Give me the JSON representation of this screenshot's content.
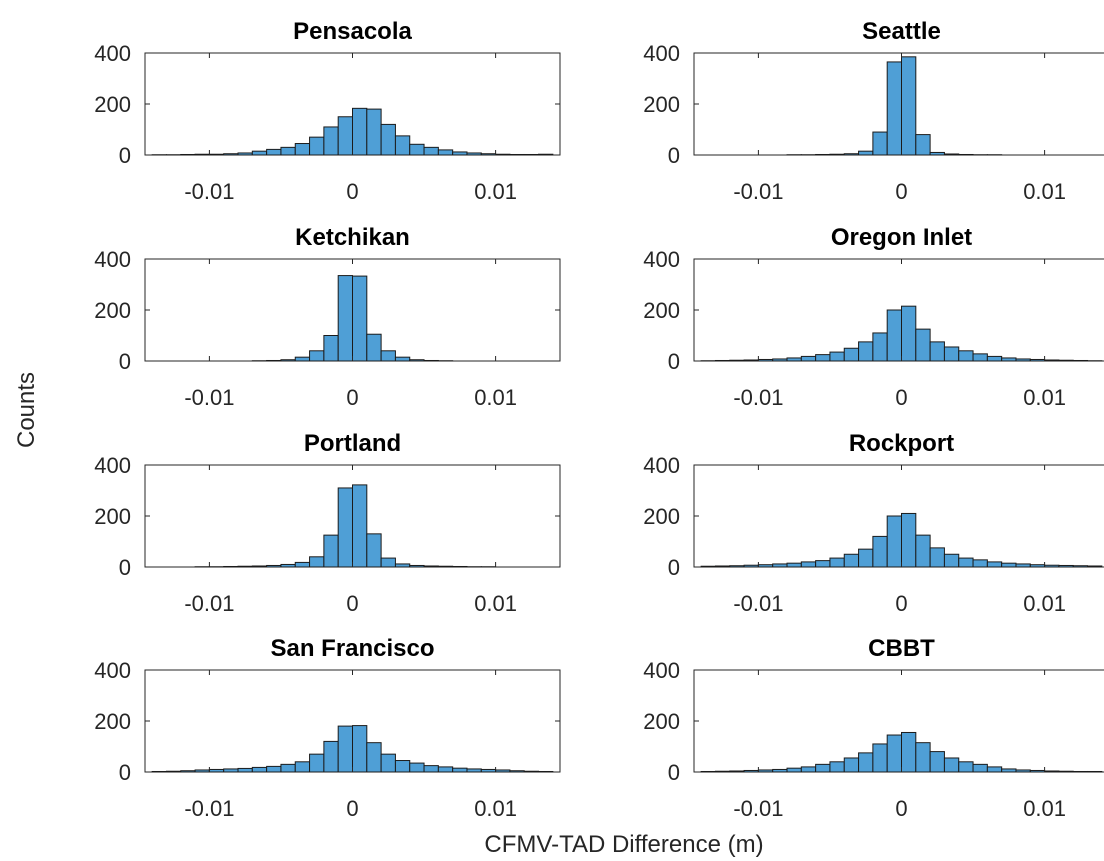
{
  "figure": {
    "ylabel": "Counts",
    "xlabel": "CFMV-TAD Difference (m)"
  },
  "colors": {
    "bar_fill": "#4f9fd6",
    "bar_edge": "#1b1b1b",
    "axis": "#262626"
  },
  "chart_data": [
    {
      "type": "bar",
      "title": "Pensacola",
      "xlim": [
        -0.0145,
        0.0145
      ],
      "ylim": [
        0,
        400
      ],
      "xticks": [
        -0.01,
        0,
        0.01
      ],
      "xtick_labels": [
        "-0.01",
        "0",
        "0.01"
      ],
      "yticks": [
        0,
        200,
        400
      ],
      "ytick_labels": [
        "0",
        "200",
        "400"
      ],
      "bin_width": 0.001,
      "bin_centers": [
        -0.0135,
        -0.0125,
        -0.0115,
        -0.0105,
        -0.0095,
        -0.0085,
        -0.0075,
        -0.0065,
        -0.0055,
        -0.0045,
        -0.0035,
        -0.0025,
        -0.0015,
        -0.0005,
        0.0005,
        0.0015,
        0.0025,
        0.0035,
        0.0045,
        0.0055,
        0.0065,
        0.0075,
        0.0085,
        0.0095,
        0.0105,
        0.0115,
        0.0125,
        0.0135
      ],
      "values": [
        1,
        1,
        2,
        3,
        3,
        5,
        8,
        15,
        22,
        30,
        45,
        70,
        110,
        150,
        183,
        180,
        120,
        75,
        42,
        30,
        20,
        12,
        8,
        5,
        3,
        2,
        2,
        3
      ]
    },
    {
      "type": "bar",
      "title": "Seattle",
      "xlim": [
        -0.0145,
        0.0145
      ],
      "ylim": [
        0,
        400
      ],
      "xticks": [
        -0.01,
        0,
        0.01
      ],
      "xtick_labels": [
        "-0.01",
        "0",
        "0.01"
      ],
      "yticks": [
        0,
        200,
        400
      ],
      "ytick_labels": [
        "0",
        "200",
        "400"
      ],
      "bin_width": 0.001,
      "bin_centers": [
        -0.0135,
        -0.0125,
        -0.0115,
        -0.0105,
        -0.0095,
        -0.0085,
        -0.0075,
        -0.0065,
        -0.0055,
        -0.0045,
        -0.0035,
        -0.0025,
        -0.0015,
        -0.0005,
        0.0005,
        0.0015,
        0.0025,
        0.0035,
        0.0045,
        0.0055,
        0.0065,
        0.0075,
        0.0085,
        0.0095,
        0.0105,
        0.0115,
        0.0125,
        0.0135
      ],
      "values": [
        0,
        0,
        0,
        0,
        0,
        0,
        1,
        1,
        2,
        3,
        5,
        15,
        90,
        365,
        385,
        80,
        10,
        4,
        2,
        1,
        1,
        0,
        0,
        0,
        0,
        0,
        0,
        0
      ]
    },
    {
      "type": "bar",
      "title": "Ketchikan",
      "xlim": [
        -0.0145,
        0.0145
      ],
      "ylim": [
        0,
        400
      ],
      "xticks": [
        -0.01,
        0,
        0.01
      ],
      "xtick_labels": [
        "-0.01",
        "0",
        "0.01"
      ],
      "yticks": [
        0,
        200,
        400
      ],
      "ytick_labels": [
        "0",
        "200",
        "400"
      ],
      "bin_width": 0.001,
      "bin_centers": [
        -0.0135,
        -0.0125,
        -0.0115,
        -0.0105,
        -0.0095,
        -0.0085,
        -0.0075,
        -0.0065,
        -0.0055,
        -0.0045,
        -0.0035,
        -0.0025,
        -0.0015,
        -0.0005,
        0.0005,
        0.0015,
        0.0025,
        0.0035,
        0.0045,
        0.0055,
        0.0065,
        0.0075,
        0.0085,
        0.0095,
        0.0105,
        0.0115,
        0.0125,
        0.0135
      ],
      "values": [
        0,
        0,
        0,
        0,
        0,
        0,
        0,
        1,
        2,
        5,
        15,
        40,
        100,
        335,
        333,
        105,
        40,
        15,
        5,
        2,
        1,
        0,
        0,
        0,
        0,
        0,
        0,
        0
      ]
    },
    {
      "type": "bar",
      "title": "Oregon Inlet",
      "xlim": [
        -0.0145,
        0.0145
      ],
      "ylim": [
        0,
        400
      ],
      "xticks": [
        -0.01,
        0,
        0.01
      ],
      "xtick_labels": [
        "-0.01",
        "0",
        "0.01"
      ],
      "yticks": [
        0,
        200,
        400
      ],
      "ytick_labels": [
        "0",
        "200",
        "400"
      ],
      "bin_width": 0.001,
      "bin_centers": [
        -0.0135,
        -0.0125,
        -0.0115,
        -0.0105,
        -0.0095,
        -0.0085,
        -0.0075,
        -0.0065,
        -0.0055,
        -0.0045,
        -0.0035,
        -0.0025,
        -0.0015,
        -0.0005,
        0.0005,
        0.0015,
        0.0025,
        0.0035,
        0.0045,
        0.0055,
        0.0065,
        0.0075,
        0.0085,
        0.0095,
        0.0105,
        0.0115,
        0.0125,
        0.0135
      ],
      "values": [
        1,
        2,
        3,
        4,
        6,
        8,
        12,
        18,
        25,
        35,
        50,
        75,
        110,
        200,
        215,
        125,
        75,
        55,
        40,
        28,
        18,
        12,
        8,
        6,
        4,
        3,
        2,
        1
      ]
    },
    {
      "type": "bar",
      "title": "Portland",
      "xlim": [
        -0.0145,
        0.0145
      ],
      "ylim": [
        0,
        400
      ],
      "xticks": [
        -0.01,
        0,
        0.01
      ],
      "xtick_labels": [
        "-0.01",
        "0",
        "0.01"
      ],
      "yticks": [
        0,
        200,
        400
      ],
      "ytick_labels": [
        "0",
        "200",
        "400"
      ],
      "bin_width": 0.001,
      "bin_centers": [
        -0.0135,
        -0.0125,
        -0.0115,
        -0.0105,
        -0.0095,
        -0.0085,
        -0.0075,
        -0.0065,
        -0.0055,
        -0.0045,
        -0.0035,
        -0.0025,
        -0.0015,
        -0.0005,
        0.0005,
        0.0015,
        0.0025,
        0.0035,
        0.0045,
        0.0055,
        0.0065,
        0.0075,
        0.0085,
        0.0095,
        0.0105,
        0.0115,
        0.0125,
        0.0135
      ],
      "values": [
        0,
        0,
        0,
        1,
        1,
        2,
        3,
        4,
        6,
        10,
        18,
        40,
        125,
        310,
        322,
        130,
        35,
        12,
        6,
        4,
        3,
        2,
        1,
        1,
        0,
        0,
        0,
        0
      ]
    },
    {
      "type": "bar",
      "title": "Rockport",
      "xlim": [
        -0.0145,
        0.0145
      ],
      "ylim": [
        0,
        400
      ],
      "xticks": [
        -0.01,
        0,
        0.01
      ],
      "xtick_labels": [
        "-0.01",
        "0",
        "0.01"
      ],
      "yticks": [
        0,
        200,
        400
      ],
      "ytick_labels": [
        "0",
        "200",
        "400"
      ],
      "bin_width": 0.001,
      "bin_centers": [
        -0.0135,
        -0.0125,
        -0.0115,
        -0.0105,
        -0.0095,
        -0.0085,
        -0.0075,
        -0.0065,
        -0.0055,
        -0.0045,
        -0.0035,
        -0.0025,
        -0.0015,
        -0.0005,
        0.0005,
        0.0015,
        0.0025,
        0.0035,
        0.0045,
        0.0055,
        0.0065,
        0.0075,
        0.0085,
        0.0095,
        0.0105,
        0.0115,
        0.0125,
        0.0135
      ],
      "values": [
        3,
        4,
        5,
        7,
        9,
        12,
        15,
        20,
        25,
        35,
        50,
        70,
        120,
        200,
        210,
        125,
        75,
        50,
        35,
        28,
        20,
        15,
        12,
        9,
        7,
        6,
        5,
        4
      ]
    },
    {
      "type": "bar",
      "title": "San Francisco",
      "xlim": [
        -0.0145,
        0.0145
      ],
      "ylim": [
        0,
        400
      ],
      "xticks": [
        -0.01,
        0,
        0.01
      ],
      "xtick_labels": [
        "-0.01",
        "0",
        "0.01"
      ],
      "yticks": [
        0,
        200,
        400
      ],
      "ytick_labels": [
        "0",
        "200",
        "400"
      ],
      "bin_width": 0.001,
      "bin_centers": [
        -0.0135,
        -0.0125,
        -0.0115,
        -0.0105,
        -0.0095,
        -0.0085,
        -0.0075,
        -0.0065,
        -0.0055,
        -0.0045,
        -0.0035,
        -0.0025,
        -0.0015,
        -0.0005,
        0.0005,
        0.0015,
        0.0025,
        0.0035,
        0.0045,
        0.0055,
        0.0065,
        0.0075,
        0.0085,
        0.0095,
        0.0105,
        0.0115,
        0.0125,
        0.0135
      ],
      "values": [
        2,
        3,
        5,
        8,
        10,
        12,
        14,
        18,
        22,
        30,
        40,
        70,
        120,
        180,
        182,
        115,
        70,
        45,
        35,
        25,
        20,
        15,
        12,
        10,
        8,
        5,
        3,
        2
      ]
    },
    {
      "type": "bar",
      "title": "CBBT",
      "xlim": [
        -0.0145,
        0.0145
      ],
      "ylim": [
        0,
        400
      ],
      "xticks": [
        -0.01,
        0,
        0.01
      ],
      "xtick_labels": [
        "-0.01",
        "0",
        "0.01"
      ],
      "yticks": [
        0,
        200,
        400
      ],
      "ytick_labels": [
        "0",
        "200",
        "400"
      ],
      "bin_width": 0.001,
      "bin_centers": [
        -0.0135,
        -0.0125,
        -0.0115,
        -0.0105,
        -0.0095,
        -0.0085,
        -0.0075,
        -0.0065,
        -0.0055,
        -0.0045,
        -0.0035,
        -0.0025,
        -0.0015,
        -0.0005,
        0.0005,
        0.0015,
        0.0025,
        0.0035,
        0.0045,
        0.0055,
        0.0065,
        0.0075,
        0.0085,
        0.0095,
        0.0105,
        0.0115,
        0.0125,
        0.0135
      ],
      "values": [
        2,
        3,
        4,
        6,
        8,
        10,
        15,
        20,
        30,
        40,
        55,
        75,
        110,
        145,
        155,
        115,
        80,
        55,
        40,
        30,
        20,
        12,
        8,
        6,
        4,
        3,
        2,
        2
      ]
    }
  ]
}
